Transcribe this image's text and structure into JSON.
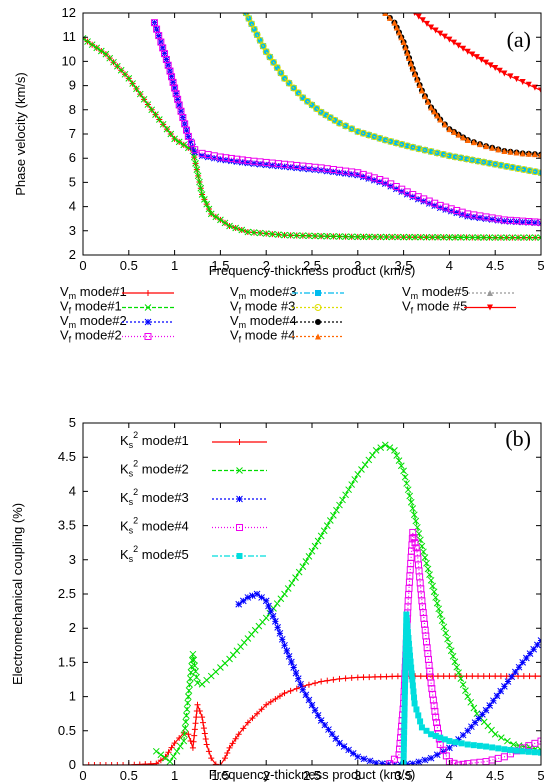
{
  "chart_data": [
    {
      "type": "line",
      "panel_label": "(a)",
      "xlabel": "Frequency-thickness product (km/s)",
      "ylabel": "Phase velocity (km/s)",
      "xlim": [
        0,
        5
      ],
      "ylim": [
        2,
        12
      ],
      "xticks": [
        "0",
        "0.5",
        "1",
        "1.5",
        "2",
        "2.5",
        "3",
        "3.5",
        "4",
        "4.5",
        "5"
      ],
      "yticks": [
        "2",
        "3",
        "4",
        "5",
        "6",
        "7",
        "8",
        "9",
        "10",
        "11",
        "12"
      ],
      "grid": false,
      "legend_position": "below",
      "series": [
        {
          "name": "Vm mode#1",
          "sym": "V",
          "sub": "m",
          "rest": " mode#1",
          "color": "#ff0000",
          "marker": "plus",
          "dash": "",
          "x": [
            0,
            0.25,
            0.5,
            0.75,
            1.0,
            1.1,
            1.2,
            1.3,
            1.4,
            1.6,
            1.8,
            2.2,
            2.6,
            3.0,
            3.5,
            4.0,
            4.5,
            5.0
          ],
          "y": [
            10.95,
            10.3,
            9.3,
            8.0,
            6.8,
            6.55,
            6.3,
            4.5,
            3.7,
            3.2,
            2.95,
            2.82,
            2.78,
            2.75,
            2.74,
            2.73,
            2.72,
            2.72
          ]
        },
        {
          "name": "Vf mode#1",
          "sym": "V",
          "sub": "f",
          "rest": " mode#1",
          "color": "#00dd00",
          "marker": "x",
          "dash": "4,2",
          "x": [
            0,
            0.25,
            0.5,
            0.75,
            1.0,
            1.1,
            1.2,
            1.3,
            1.4,
            1.6,
            1.8,
            2.2,
            2.6,
            3.0,
            3.5,
            4.0,
            4.5,
            5.0
          ],
          "y": [
            10.95,
            10.3,
            9.3,
            8.0,
            6.8,
            6.55,
            6.3,
            4.5,
            3.7,
            3.2,
            2.95,
            2.82,
            2.78,
            2.75,
            2.74,
            2.73,
            2.72,
            2.72
          ]
        },
        {
          "name": "Vm mode#2",
          "sym": "V",
          "sub": "m",
          "rest": " mode#2",
          "color": "#0000ff",
          "marker": "star",
          "dash": "2,2",
          "x": [
            0.78,
            0.85,
            0.95,
            1.05,
            1.15,
            1.22,
            1.3,
            1.5,
            1.8,
            2.2,
            2.6,
            3.0,
            3.3,
            3.6,
            3.9,
            4.2,
            4.6,
            5.0
          ],
          "y": [
            11.6,
            10.8,
            9.6,
            8.2,
            6.9,
            6.25,
            6.1,
            5.95,
            5.8,
            5.65,
            5.5,
            5.3,
            4.95,
            4.4,
            3.95,
            3.6,
            3.4,
            3.32
          ]
        },
        {
          "name": "Vf mode#2",
          "sym": "V",
          "sub": "f",
          "rest": " mode#2",
          "color": "#ee00ee",
          "marker": "square",
          "dash": "1,2",
          "x": [
            0.78,
            0.85,
            0.95,
            1.05,
            1.15,
            1.22,
            1.3,
            1.5,
            1.8,
            2.2,
            2.6,
            3.0,
            3.3,
            3.6,
            3.9,
            4.2,
            4.6,
            5.0
          ],
          "y": [
            11.6,
            10.8,
            9.6,
            8.2,
            6.9,
            6.35,
            6.2,
            6.05,
            5.9,
            5.75,
            5.6,
            5.4,
            5.05,
            4.5,
            4.05,
            3.7,
            3.45,
            3.35
          ]
        },
        {
          "name": "Vm mode#3",
          "sym": "V",
          "sub": "m",
          "rest": " mode#3",
          "color": "#00bbee",
          "marker": "fsquare",
          "dash": "6,2,2,2",
          "x": [
            1.78,
            1.9,
            2.0,
            2.2,
            2.4,
            2.6,
            2.8,
            3.0,
            3.3,
            3.6,
            4.0,
            4.5,
            5.0
          ],
          "y": [
            12.0,
            11.1,
            10.4,
            9.3,
            8.5,
            7.9,
            7.45,
            7.1,
            6.75,
            6.45,
            6.1,
            5.75,
            5.4
          ]
        },
        {
          "name": "Vf mode #3",
          "sym": "V",
          "sub": "f",
          "rest": " mode #3",
          "color": "#dddd00",
          "marker": "circle",
          "dash": "2,2",
          "x": [
            1.78,
            1.9,
            2.0,
            2.2,
            2.4,
            2.6,
            2.8,
            3.0,
            3.3,
            3.6,
            4.0,
            4.5,
            5.0
          ],
          "y": [
            12.0,
            11.1,
            10.4,
            9.3,
            8.5,
            7.9,
            7.45,
            7.1,
            6.75,
            6.45,
            6.1,
            5.75,
            5.4
          ]
        },
        {
          "name": "Vm mode#4",
          "sym": "V",
          "sub": "m",
          "rest": " mode#4",
          "color": "#000000",
          "marker": "fcircle",
          "dash": "2,2",
          "x": [
            3.3,
            3.4,
            3.5,
            3.6,
            3.7,
            3.8,
            3.9,
            4.0,
            4.2,
            4.4,
            4.6,
            4.8,
            5.0
          ],
          "y": [
            12.0,
            11.6,
            10.8,
            9.7,
            8.8,
            8.1,
            7.6,
            7.2,
            6.75,
            6.5,
            6.3,
            6.2,
            6.15
          ]
        },
        {
          "name": "Vf mode #4",
          "sym": "V",
          "sub": "f",
          "rest": " mode #4",
          "color": "#ff6600",
          "marker": "triangle",
          "dash": "2,2",
          "x": [
            3.3,
            3.4,
            3.5,
            3.6,
            3.7,
            3.8,
            3.9,
            4.0,
            4.2,
            4.4,
            4.6,
            4.8,
            5.0
          ],
          "y": [
            12.0,
            11.6,
            10.8,
            9.7,
            8.8,
            8.1,
            7.6,
            7.2,
            6.75,
            6.5,
            6.3,
            6.2,
            6.15
          ]
        },
        {
          "name": "Vm mode#5",
          "sym": "V",
          "sub": "m",
          "rest": " mode#5",
          "color": "#999999",
          "marker": "triangle",
          "dash": "2,2",
          "x": [],
          "y": []
        },
        {
          "name": "Vf mode #5",
          "sym": "V",
          "sub": "f",
          "rest": " mode #5",
          "color": "#ff0000",
          "marker": "itriangle",
          "dash": "",
          "x": [
            3.62,
            3.8,
            4.0,
            4.2,
            4.4,
            4.6,
            4.8,
            5.0
          ],
          "y": [
            12.0,
            11.4,
            10.9,
            10.4,
            9.95,
            9.5,
            9.15,
            8.8
          ]
        }
      ]
    },
    {
      "type": "line",
      "panel_label": "(b)",
      "xlabel": "Frequency-thickness product (km/s)",
      "ylabel": "Electromechanical coupling (%)",
      "xlim": [
        0,
        5
      ],
      "ylim": [
        0,
        5
      ],
      "xticks": [
        "0",
        "0.5",
        "1",
        "1.5",
        "2",
        "2.5",
        "3",
        "3.5",
        "4",
        "4.5",
        "5"
      ],
      "yticks": [
        "0",
        "0.5",
        "1",
        "1.5",
        "2",
        "2.5",
        "3",
        "3.5",
        "4",
        "4.5",
        "5"
      ],
      "grid": false,
      "legend_position": "top-left",
      "series": [
        {
          "name": "Ks2 mode#1",
          "sym": "K",
          "sub": "s",
          "sup": "2",
          "rest": " mode#1",
          "color": "#ff0000",
          "marker": "plus",
          "dash": "",
          "x": [
            0,
            0.5,
            0.8,
            0.9,
            1.0,
            1.1,
            1.15,
            1.2,
            1.25,
            1.3,
            1.35,
            1.4,
            1.45,
            1.5,
            1.55,
            1.6,
            1.7,
            1.8,
            2.0,
            2.2,
            2.4,
            2.6,
            2.8,
            3.0,
            3.5,
            4.0,
            4.5,
            5.0
          ],
          "y": [
            0,
            0,
            0.02,
            0.12,
            0.32,
            0.47,
            0.45,
            0.25,
            0.88,
            0.7,
            0.3,
            0.1,
            0.01,
            0.0,
            0.1,
            0.25,
            0.45,
            0.62,
            0.88,
            1.05,
            1.15,
            1.22,
            1.26,
            1.28,
            1.3,
            1.3,
            1.3,
            1.3
          ]
        },
        {
          "name": "Ks2 mode#2",
          "sym": "K",
          "sub": "s",
          "sup": "2",
          "rest": " mode#2",
          "color": "#00dd00",
          "marker": "x",
          "dash": "4,2",
          "x": [
            0.8,
            0.95,
            1.1,
            1.15,
            1.2,
            1.25,
            1.3,
            1.4,
            1.6,
            1.8,
            2.0,
            2.2,
            2.4,
            2.6,
            2.8,
            3.0,
            3.2,
            3.3,
            3.4,
            3.5,
            3.6,
            3.7,
            3.8,
            3.9,
            4.0,
            4.1,
            4.2,
            4.3,
            4.5,
            4.7,
            5.0
          ],
          "y": [
            0.2,
            0.05,
            0.35,
            1.0,
            1.62,
            1.2,
            1.18,
            1.3,
            1.55,
            1.85,
            2.15,
            2.5,
            2.9,
            3.35,
            3.8,
            4.25,
            4.6,
            4.68,
            4.6,
            4.3,
            3.75,
            3.2,
            2.7,
            2.2,
            1.75,
            1.35,
            1.0,
            0.75,
            0.45,
            0.3,
            0.22
          ]
        },
        {
          "name": "Ks2 mode#3",
          "sym": "K",
          "sub": "s",
          "sup": "2",
          "rest": " mode#3",
          "color": "#0000ff",
          "marker": "star",
          "dash": "2,2",
          "x": [
            1.7,
            1.8,
            1.9,
            2.0,
            2.1,
            2.2,
            2.4,
            2.6,
            2.8,
            3.0,
            3.2,
            3.4,
            3.6,
            3.8,
            4.0,
            4.2,
            4.4,
            4.6,
            4.8,
            5.0
          ],
          "y": [
            2.35,
            2.45,
            2.5,
            2.4,
            2.1,
            1.75,
            1.1,
            0.65,
            0.32,
            0.12,
            0.03,
            0.0,
            0.02,
            0.1,
            0.25,
            0.5,
            0.8,
            1.15,
            1.5,
            1.82
          ]
        },
        {
          "name": "Ks2 mode#4",
          "sym": "K",
          "sub": "s",
          "sup": "2",
          "rest": " mode#4",
          "color": "#ee00ee",
          "marker": "square",
          "dash": "1,2",
          "x": [
            3.35,
            3.45,
            3.5,
            3.55,
            3.6,
            3.65,
            3.7,
            3.75,
            3.8,
            3.85,
            3.9,
            4.0,
            4.1,
            4.2,
            4.4,
            4.6,
            4.8,
            5.0
          ],
          "y": [
            0.02,
            0.15,
            0.9,
            2.4,
            3.4,
            3.1,
            2.4,
            1.8,
            1.2,
            0.7,
            0.3,
            0.05,
            0.0,
            0.02,
            0.05,
            0.12,
            0.25,
            0.35
          ]
        },
        {
          "name": "Ks2 mode#5",
          "sym": "K",
          "sub": "s",
          "sup": "2",
          "rest": " mode#5",
          "color": "#00dddd",
          "marker": "fsquare",
          "dash": "6,2,2,2",
          "x": [
            3.5,
            3.53,
            3.57,
            3.62,
            3.7,
            3.8,
            3.9,
            4.0,
            4.2,
            4.4,
            4.6,
            4.8,
            5.0
          ],
          "y": [
            0.05,
            2.2,
            1.6,
            0.9,
            0.55,
            0.45,
            0.4,
            0.35,
            0.3,
            0.27,
            0.23,
            0.2,
            0.18
          ]
        }
      ]
    }
  ]
}
